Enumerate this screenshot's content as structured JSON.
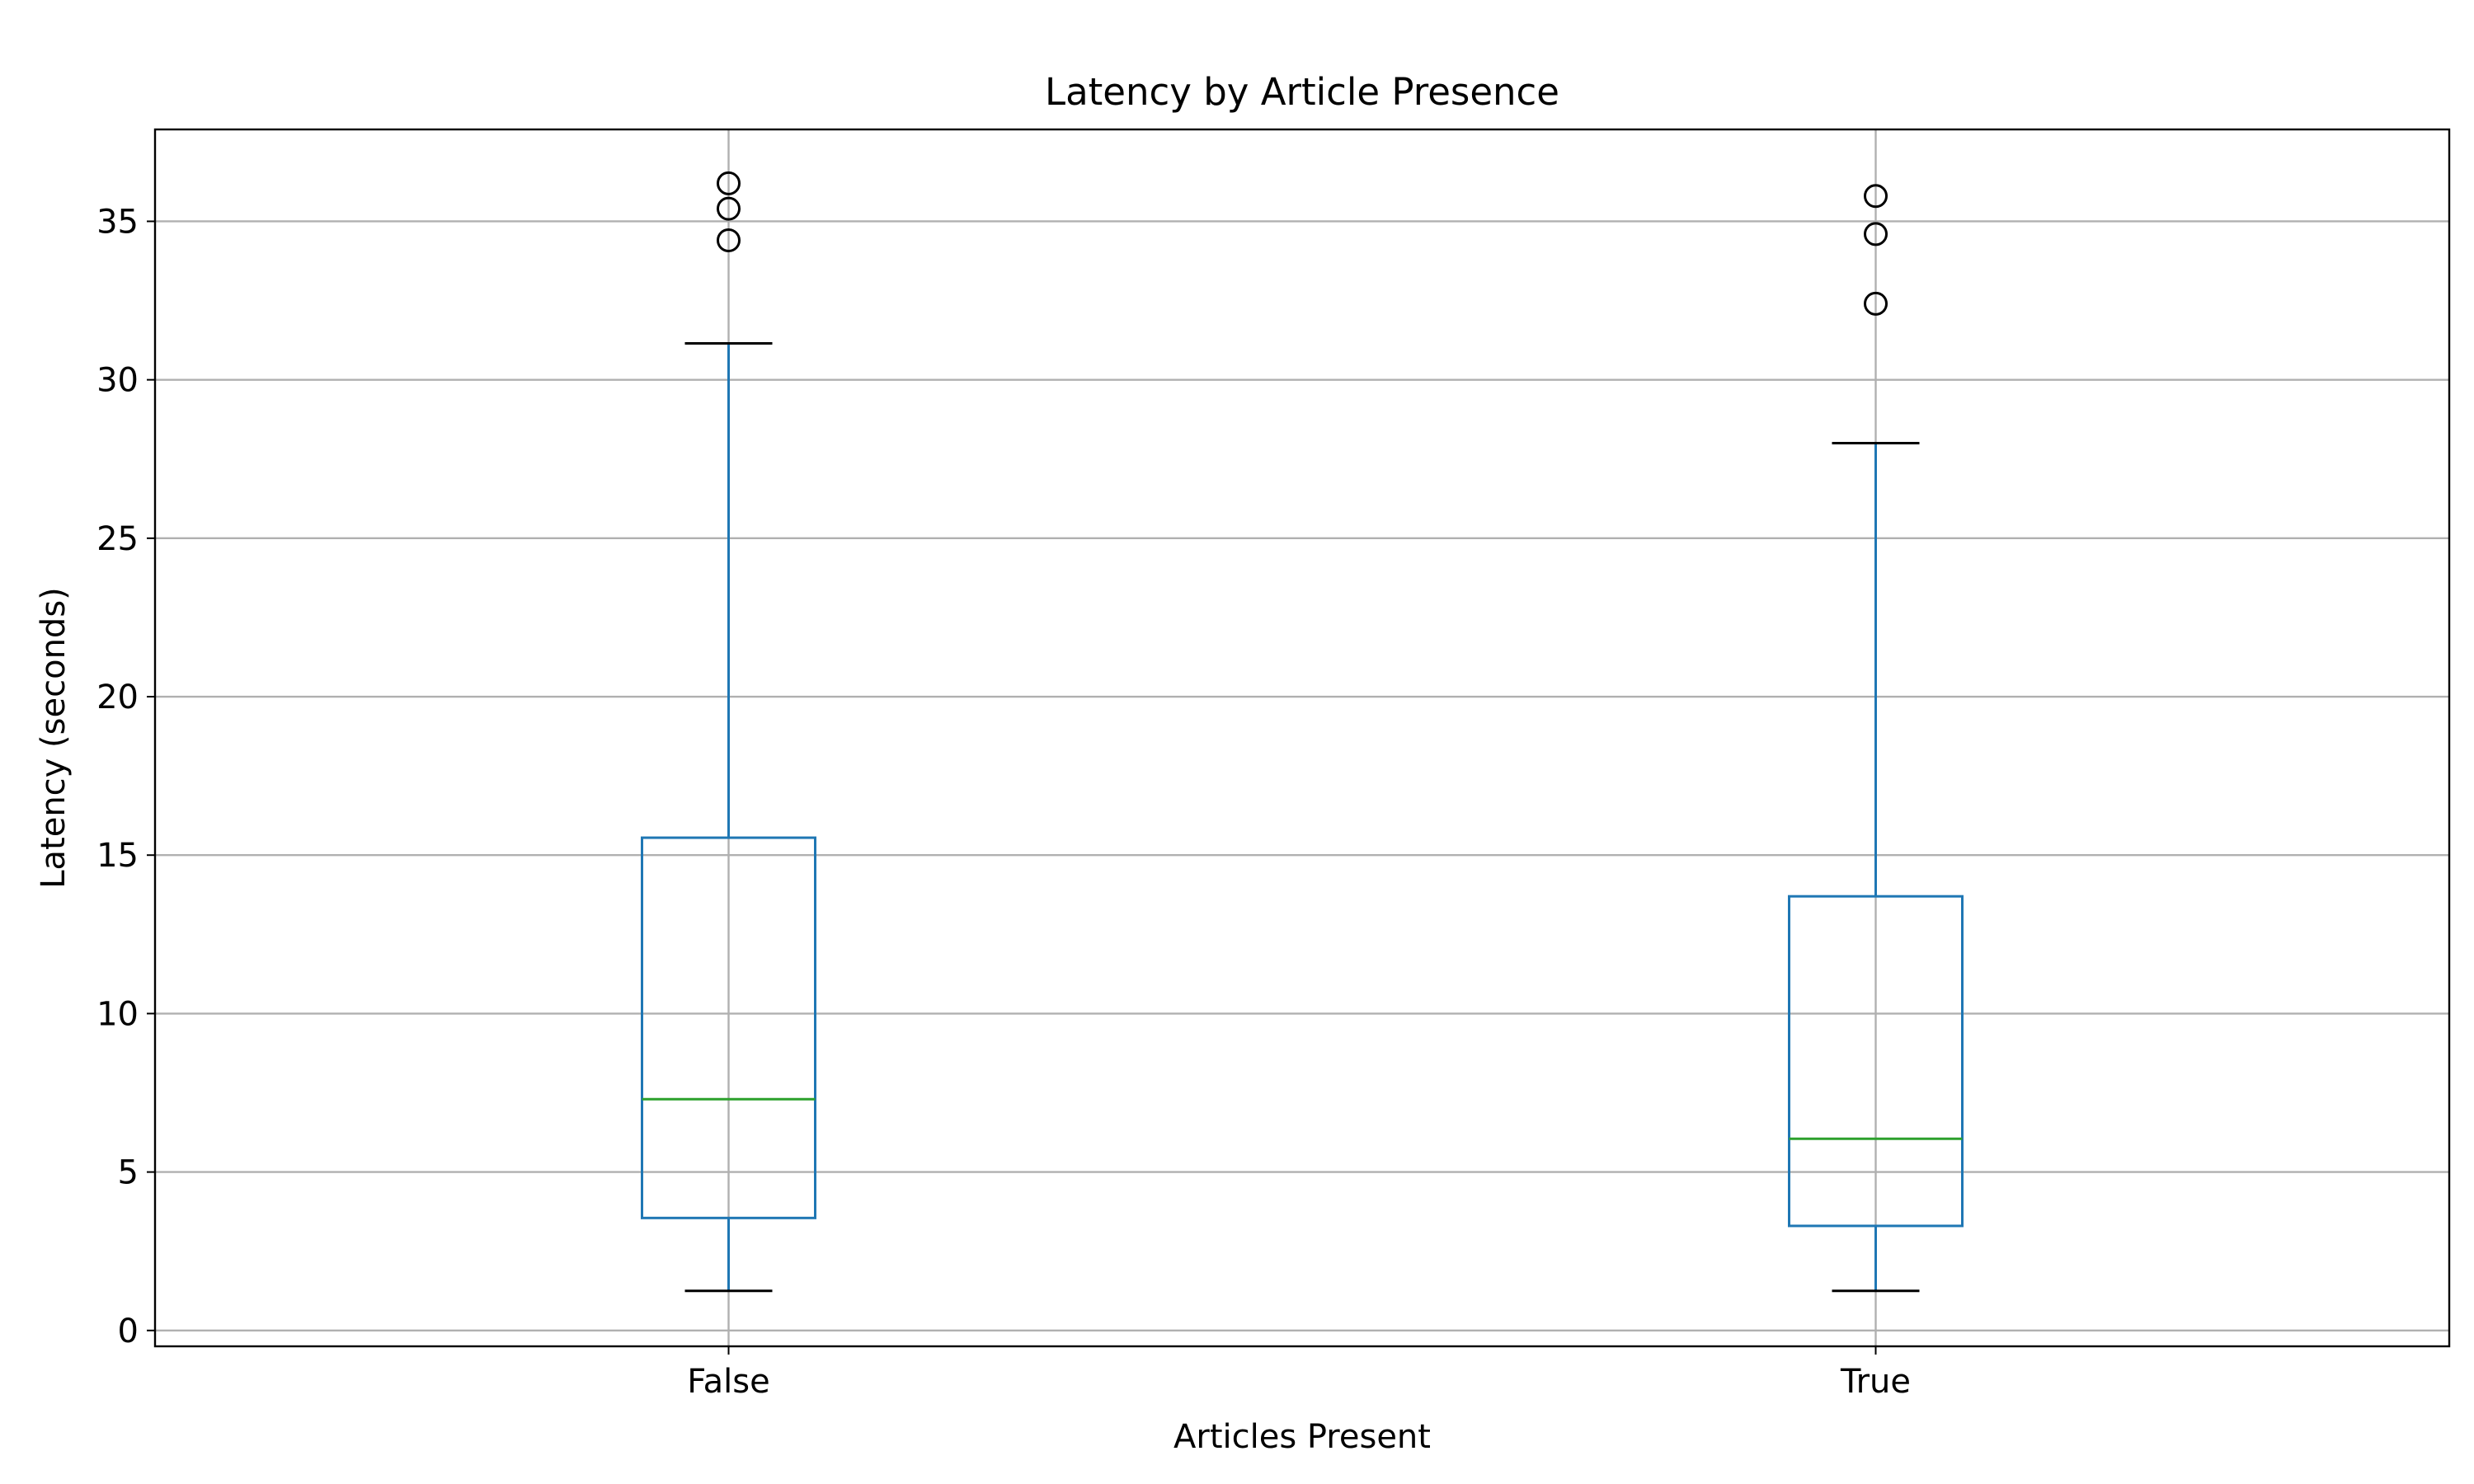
{
  "chart_data": {
    "type": "box",
    "title": "Latency by Article Presence",
    "xlabel": "Articles Present",
    "ylabel": "Latency (seconds)",
    "categories": [
      "False",
      "True"
    ],
    "ylim": [
      -0.5,
      37.9
    ],
    "yticks": [
      0,
      5,
      10,
      15,
      20,
      25,
      30,
      35
    ],
    "ytick_labels": [
      "0",
      "5",
      "10",
      "15",
      "20",
      "25",
      "30",
      "35"
    ],
    "grid": true,
    "boxes": [
      {
        "category": "False",
        "whisker_low": 1.25,
        "q1": 3.55,
        "median": 7.3,
        "q3": 15.55,
        "whisker_high": 31.15,
        "outliers": [
          34.4,
          35.4,
          36.2
        ]
      },
      {
        "category": "True",
        "whisker_low": 1.25,
        "q1": 3.3,
        "median": 6.05,
        "q3": 13.7,
        "whisker_high": 28.0,
        "outliers": [
          32.4,
          34.6,
          35.8
        ]
      }
    ],
    "colors": {
      "box": "#1f77b4",
      "median": "#2ca02c",
      "whisker_cap": "#000000",
      "outlier": "#000000",
      "grid": "#b0b0b0",
      "axes": "#000000"
    }
  }
}
